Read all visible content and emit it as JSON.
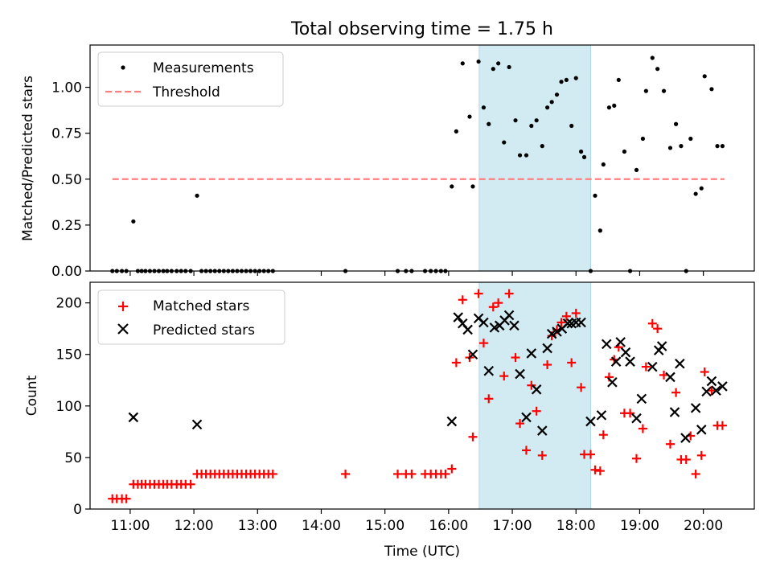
{
  "title": "Total observing time = 1.75 h",
  "colors": {
    "measurement": "#000000",
    "threshold": "#ff7f7f",
    "matched": "#ff0000",
    "predicted": "#000000",
    "span": "#add8e6"
  },
  "chart_data": [
    {
      "type": "scatter",
      "ylabel": "Matched/Predicted stars",
      "ylim": [
        0,
        1.23
      ],
      "xlim": [
        10.37,
        20.8
      ],
      "yticks": [
        0,
        0.25,
        0.5,
        0.75,
        1.0
      ],
      "ytick_labels": [
        "0.00",
        "0.25",
        "0.50",
        "0.75",
        "1.00"
      ],
      "shaded_span": [
        16.48,
        18.23
      ],
      "legend": {
        "position": "top-left",
        "entries": [
          {
            "label": "Measurements",
            "marker": "dot"
          },
          {
            "label": "Threshold",
            "marker": "dashed-line"
          }
        ]
      },
      "threshold": {
        "name": "Threshold",
        "value": 0.5,
        "x": [
          10.72,
          20.33
        ]
      },
      "series": [
        {
          "name": "Measurements",
          "x": [
            10.72,
            10.79,
            10.87,
            10.94,
            11.05,
            11.12,
            11.18,
            11.24,
            11.31,
            11.38,
            11.45,
            11.52,
            11.58,
            11.65,
            11.73,
            11.8,
            11.87,
            11.95,
            12.05,
            12.12,
            12.19,
            12.26,
            12.33,
            12.4,
            12.47,
            12.54,
            12.61,
            12.68,
            12.75,
            12.82,
            12.89,
            12.96,
            13.03,
            13.1,
            13.17,
            13.24,
            14.38,
            15.2,
            15.33,
            15.42,
            15.63,
            15.72,
            15.8,
            15.88,
            15.95,
            16.05,
            16.12,
            16.22,
            16.33,
            16.38,
            16.47,
            16.55,
            16.63,
            16.7,
            16.78,
            16.87,
            16.95,
            17.05,
            17.12,
            17.22,
            17.3,
            17.38,
            17.47,
            17.55,
            17.62,
            17.7,
            17.77,
            17.85,
            17.93,
            18.0,
            18.08,
            18.13,
            18.23,
            18.3,
            18.38,
            18.43,
            18.52,
            18.6,
            18.67,
            18.76,
            18.85,
            18.95,
            19.05,
            19.1,
            19.2,
            19.28,
            19.38,
            19.48,
            19.57,
            19.65,
            19.73,
            19.8,
            19.88,
            19.97,
            20.02,
            20.13,
            20.22,
            20.3
          ],
          "y": [
            0,
            0,
            0,
            0,
            0.27,
            0,
            0,
            0,
            0,
            0,
            0,
            0,
            0,
            0,
            0,
            0,
            0,
            0,
            0.41,
            0,
            0,
            0,
            0,
            0,
            0,
            0,
            0,
            0,
            0,
            0,
            0,
            0,
            0,
            0,
            0,
            0,
            0,
            0,
            0,
            0,
            0,
            0,
            0,
            0,
            0,
            0.46,
            0.76,
            1.13,
            0.84,
            0.46,
            1.14,
            0.89,
            0.8,
            1.1,
            1.13,
            0.7,
            1.11,
            0.82,
            0.63,
            0.63,
            0.79,
            0.82,
            0.68,
            0.89,
            0.92,
            0.96,
            1.03,
            1.04,
            0.79,
            1.05,
            0.65,
            0.62,
            0,
            0.41,
            0.22,
            0.58,
            0.89,
            0.9,
            1.04,
            0.65,
            0,
            0.55,
            0.72,
            0.98,
            1.16,
            1.1,
            0.98,
            0.67,
            0.8,
            0.68,
            0,
            0.72,
            0.42,
            0.45,
            1.06,
            0.99,
            0.68,
            0.68
          ]
        }
      ]
    },
    {
      "type": "scatter",
      "xlabel": "Time (UTC)",
      "ylabel": "Count",
      "ylim": [
        0,
        220
      ],
      "xlim": [
        10.37,
        20.8
      ],
      "yticks": [
        0,
        50,
        100,
        150,
        200
      ],
      "ytick_labels": [
        "0",
        "50",
        "100",
        "150",
        "200"
      ],
      "xticks": [
        11,
        12,
        13,
        14,
        15,
        16,
        17,
        18,
        19,
        20
      ],
      "xtick_labels": [
        "11:00",
        "12:00",
        "13:00",
        "14:00",
        "15:00",
        "16:00",
        "17:00",
        "18:00",
        "19:00",
        "20:00"
      ],
      "shaded_span": [
        16.48,
        18.23
      ],
      "legend": {
        "position": "top-left",
        "entries": [
          {
            "label": "Matched stars",
            "marker": "plus"
          },
          {
            "label": "Predicted stars",
            "marker": "x"
          }
        ]
      },
      "series": [
        {
          "name": "Matched stars",
          "marker": "plus",
          "x": [
            10.72,
            10.79,
            10.87,
            10.94,
            11.05,
            11.12,
            11.18,
            11.24,
            11.31,
            11.38,
            11.45,
            11.52,
            11.58,
            11.65,
            11.73,
            11.8,
            11.87,
            11.95,
            12.05,
            12.12,
            12.19,
            12.26,
            12.33,
            12.4,
            12.47,
            12.54,
            12.61,
            12.68,
            12.75,
            12.82,
            12.89,
            12.96,
            13.03,
            13.1,
            13.17,
            13.24,
            14.38,
            15.2,
            15.33,
            15.42,
            15.63,
            15.72,
            15.8,
            15.88,
            15.95,
            16.05,
            16.12,
            16.22,
            16.33,
            16.38,
            16.47,
            16.55,
            16.63,
            16.7,
            16.78,
            16.87,
            16.95,
            17.05,
            17.12,
            17.22,
            17.3,
            17.38,
            17.47,
            17.55,
            17.62,
            17.7,
            17.77,
            17.85,
            17.93,
            18.0,
            18.08,
            18.13,
            18.23,
            18.3,
            18.38,
            18.43,
            18.52,
            18.6,
            18.67,
            18.76,
            18.85,
            18.95,
            19.05,
            19.1,
            19.2,
            19.28,
            19.38,
            19.48,
            19.57,
            19.65,
            19.73,
            19.8,
            19.88,
            19.97,
            20.02,
            20.13,
            20.22,
            20.3
          ],
          "y": [
            10,
            10,
            10,
            10,
            24,
            24,
            24,
            24,
            24,
            24,
            24,
            24,
            24,
            24,
            24,
            24,
            24,
            24,
            34,
            34,
            34,
            34,
            34,
            34,
            34,
            34,
            34,
            34,
            34,
            34,
            34,
            34,
            34,
            34,
            34,
            34,
            34,
            34,
            34,
            34,
            34,
            34,
            34,
            34,
            34,
            39,
            142,
            203,
            147,
            70,
            209,
            161,
            107,
            196,
            200,
            129,
            209,
            147,
            83,
            57,
            120,
            95,
            52,
            140,
            168,
            174,
            181,
            187,
            142,
            190,
            118,
            53,
            53,
            38,
            37,
            72,
            128,
            145,
            157,
            93,
            93,
            49,
            78,
            138,
            180,
            175,
            130,
            63,
            113,
            48,
            48,
            71,
            34,
            52,
            133,
            115,
            81,
            81
          ]
        },
        {
          "name": "Predicted stars",
          "marker": "x",
          "x": [
            11.05,
            12.05,
            16.05,
            16.15,
            16.22,
            16.3,
            16.38,
            16.47,
            16.55,
            16.63,
            16.72,
            16.8,
            16.88,
            16.95,
            17.03,
            17.12,
            17.22,
            17.3,
            17.38,
            17.47,
            17.55,
            17.62,
            17.7,
            17.78,
            17.87,
            17.93,
            18.0,
            18.08,
            18.23,
            18.4,
            18.48,
            18.57,
            18.63,
            18.7,
            18.78,
            18.85,
            18.95,
            19.03,
            19.2,
            19.3,
            19.35,
            19.48,
            19.55,
            19.63,
            19.72,
            19.88,
            19.97,
            20.05,
            20.13,
            20.2,
            20.3
          ],
          "y": [
            89,
            82,
            85,
            186,
            180,
            174,
            150,
            185,
            181,
            134,
            176,
            178,
            183,
            188,
            178,
            131,
            89,
            151,
            116,
            76,
            156,
            170,
            172,
            175,
            180,
            180,
            181,
            181,
            85,
            91,
            160,
            123,
            143,
            162,
            152,
            143,
            88,
            107,
            138,
            154,
            158,
            128,
            94,
            141,
            69,
            98,
            77,
            114,
            124,
            115,
            119
          ]
        }
      ]
    }
  ]
}
